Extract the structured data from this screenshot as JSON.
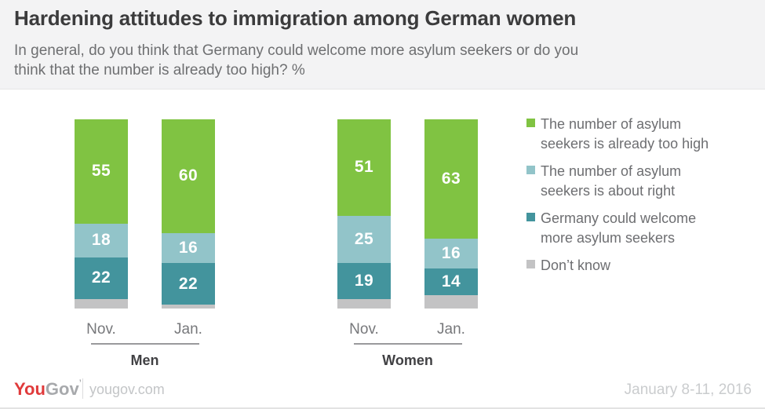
{
  "header": {
    "title": "Hardening attitudes to immigration among German women",
    "subtitle": "In general, do you think that Germany could welcome more asylum seekers or do you think that the number is already too high? %"
  },
  "chart_data": {
    "type": "bar",
    "stacked": true,
    "unit": "%",
    "ylim": [
      0,
      100
    ],
    "grid": false,
    "legend_position": "right",
    "series": [
      {
        "key": "too_high",
        "name": "The number of asylum seekers is already too high",
        "color": "#80C342"
      },
      {
        "key": "about_right",
        "name": "The number of asylum seekers is about right",
        "color": "#92C4C9"
      },
      {
        "key": "welcome_more",
        "name": "Germany could welcome more asylum seekers",
        "color": "#43949D"
      },
      {
        "key": "dont_know",
        "name": "Don’t know",
        "color": "#C3C3C4"
      }
    ],
    "value_labels_visible": [
      true,
      true,
      true,
      false
    ],
    "groups": [
      {
        "label": "Men",
        "bars": [
          {
            "category": "Nov.",
            "values": [
              55,
              18,
              22,
              5
            ]
          },
          {
            "category": "Jan.",
            "values": [
              60,
              16,
              22,
              2
            ]
          }
        ]
      },
      {
        "label": "Women",
        "bars": [
          {
            "category": "Nov.",
            "values": [
              51,
              25,
              19,
              5
            ]
          },
          {
            "category": "Jan.",
            "values": [
              63,
              16,
              14,
              7
            ]
          }
        ]
      }
    ]
  },
  "legend": {
    "items": [
      {
        "lines": [
          "The number of asylum",
          "seekers is already too high"
        ],
        "color": "#80C342"
      },
      {
        "lines": [
          "The number of asylum",
          "seekers is about right"
        ],
        "color": "#92C4C9"
      },
      {
        "lines": [
          "Germany could welcome",
          "more asylum seekers"
        ],
        "color": "#43949D"
      },
      {
        "lines": [
          "Don’t know"
        ],
        "color": "#C3C3C4"
      }
    ]
  },
  "footer": {
    "logo": {
      "you": "You",
      "gov": "Gov",
      "you_color": "#E03A3B",
      "gov_color": "#A7A9AC"
    },
    "site": "yougov.com",
    "date": "January 8-11, 2016"
  }
}
